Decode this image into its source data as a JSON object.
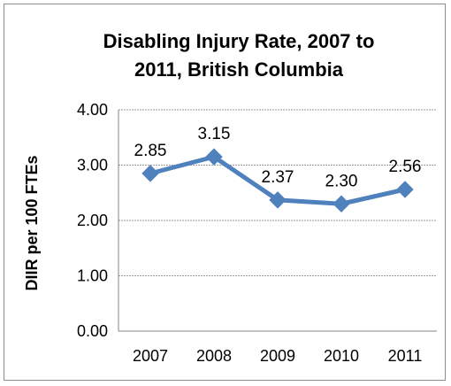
{
  "chart_data": {
    "type": "line",
    "title_line1": "Disabling Injury Rate, 2007 to",
    "title_line2": "2011, British Columbia",
    "ylabel": "DIIR per 100 FTEs",
    "xlabel": "",
    "categories": [
      "2007",
      "2008",
      "2009",
      "2010",
      "2011"
    ],
    "values": [
      2.85,
      3.15,
      2.37,
      2.3,
      2.56
    ],
    "data_labels": [
      "2.85",
      "3.15",
      "2.37",
      "2.30",
      "2.56"
    ],
    "ylim": [
      0,
      4
    ],
    "yticks": [
      0,
      1,
      2,
      3,
      4
    ],
    "ytick_labels": [
      "0.00",
      "1.00",
      "2.00",
      "3.00",
      "4.00"
    ],
    "grid": true,
    "legend": "none",
    "series_color": "#4f81bd",
    "grid_color": "#9a9a9a"
  }
}
